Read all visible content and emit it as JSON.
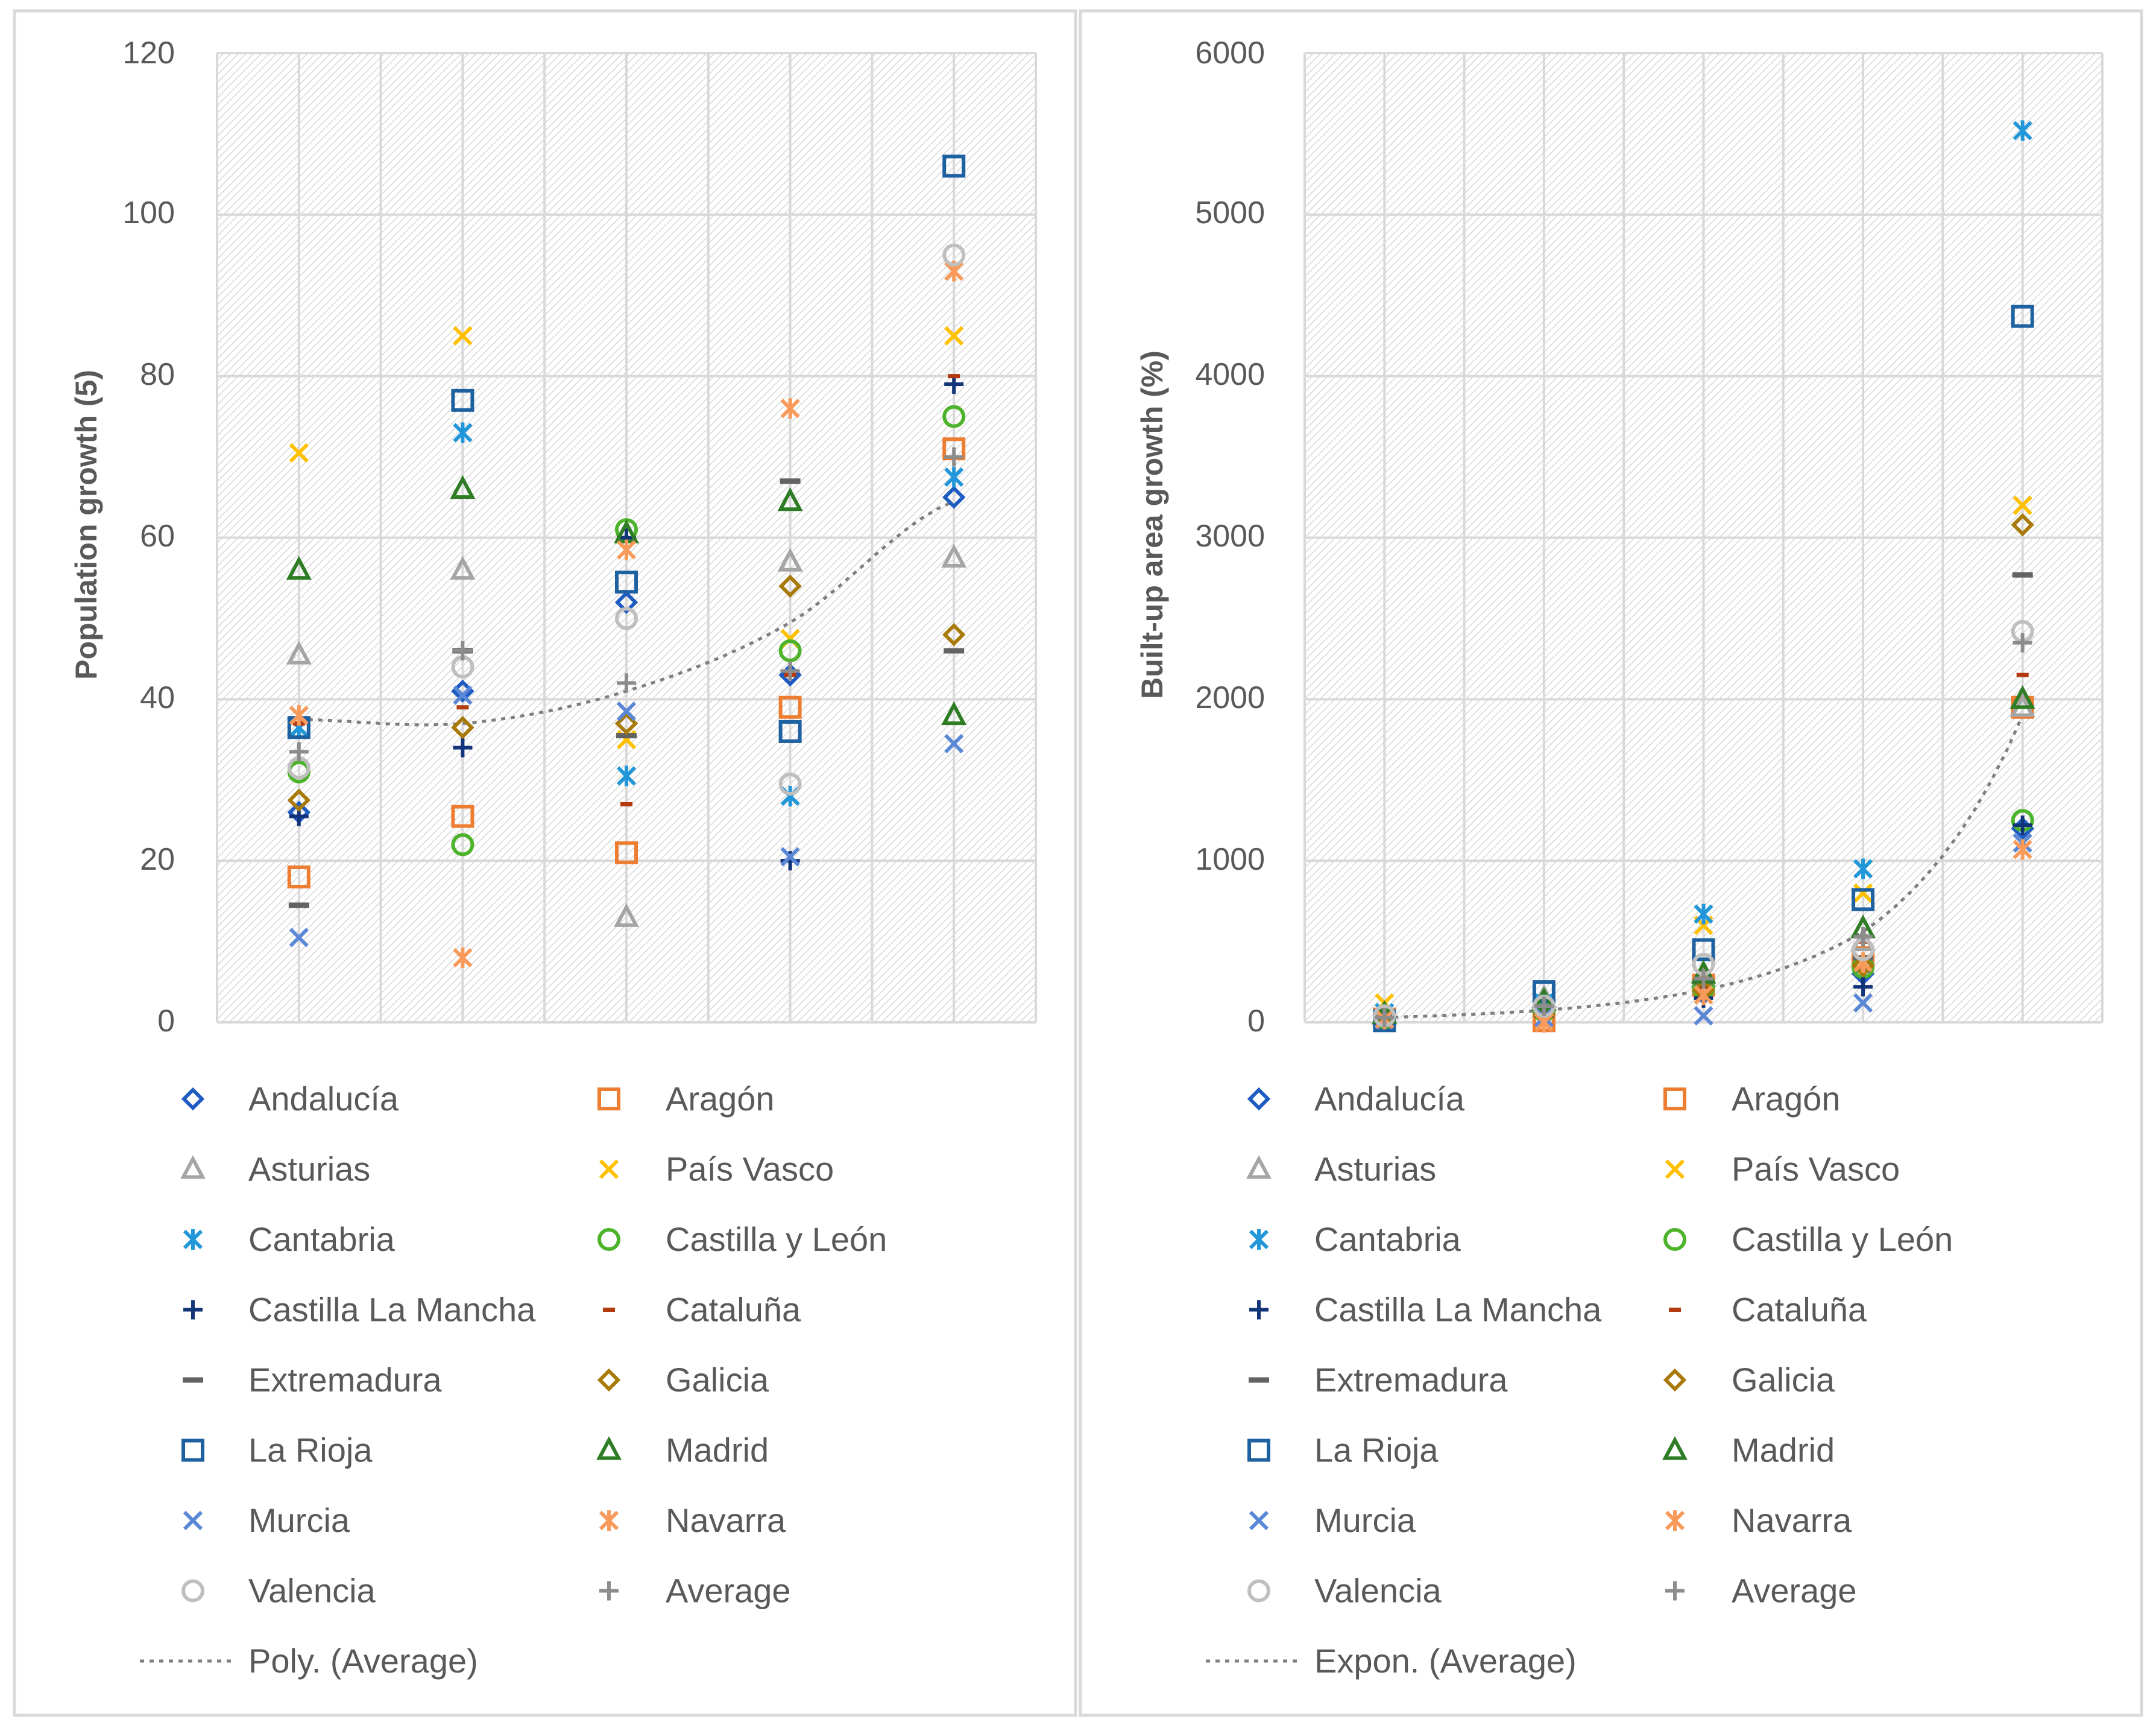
{
  "chart_data": [
    {
      "type": "scatter",
      "ylabel": "Population growth (5)",
      "xlabel": "",
      "ylim": [
        0,
        120
      ],
      "yticks": [
        "0",
        "20",
        "40",
        "60",
        "80",
        "100",
        "120"
      ],
      "x_categories": 5,
      "series": [
        {
          "name": "Andalucía",
          "values": [
            26,
            41,
            52,
            43,
            65
          ]
        },
        {
          "name": "Aragón",
          "values": [
            18,
            25.5,
            21,
            39,
            71
          ]
        },
        {
          "name": "Asturias",
          "values": [
            45.5,
            56,
            13,
            57,
            57.5
          ]
        },
        {
          "name": "País Vasco",
          "values": [
            70.5,
            85,
            35,
            47.5,
            85
          ]
        },
        {
          "name": "Cantabria",
          "values": [
            36.5,
            73,
            30.5,
            28,
            67.5
          ]
        },
        {
          "name": "Castilla y León",
          "values": [
            31,
            22,
            61,
            46,
            75
          ]
        },
        {
          "name": "Castilla La Mancha",
          "values": [
            25.5,
            34,
            60,
            20,
            79
          ]
        },
        {
          "name": "Cataluña",
          "values": [
            37,
            39,
            27,
            43,
            80
          ]
        },
        {
          "name": "Extremadura",
          "values": [
            14.5,
            46,
            35.5,
            67,
            46
          ]
        },
        {
          "name": "Galicia",
          "values": [
            27.5,
            36.5,
            37,
            54,
            48
          ]
        },
        {
          "name": "La Rioja",
          "values": [
            36.5,
            77,
            54.5,
            36,
            106
          ]
        },
        {
          "name": "Madrid",
          "values": [
            56,
            66,
            60.5,
            64.5,
            38
          ]
        },
        {
          "name": "Murcia",
          "values": [
            10.5,
            40.5,
            38.5,
            20.5,
            34.5
          ]
        },
        {
          "name": "Navarra",
          "values": [
            38,
            8,
            58.5,
            76,
            93
          ]
        },
        {
          "name": "Valencia",
          "values": [
            31.5,
            44,
            50,
            29.5,
            95
          ]
        },
        {
          "name": "Average",
          "values": [
            33.5,
            46,
            42,
            43.5,
            70
          ]
        }
      ],
      "trendline": {
        "name": "Poly. (Average)",
        "kind": "poly2",
        "values": [
          37.5,
          37.0,
          41.0,
          49.5,
          64.5
        ]
      }
    },
    {
      "type": "scatter",
      "ylabel": "Built-up area growth (%)",
      "xlabel": "",
      "ylim": [
        0,
        6000
      ],
      "yticks": [
        "0",
        "1000",
        "2000",
        "3000",
        "4000",
        "5000",
        "6000"
      ],
      "x_categories": 5,
      "series": [
        {
          "name": "Andalucía",
          "values": [
            30,
            90,
            180,
            300,
            1200
          ]
        },
        {
          "name": "Aragón",
          "values": [
            20,
            10,
            230,
            400,
            1950
          ]
        },
        {
          "name": "Asturias",
          "values": [
            40,
            150,
            280,
            500,
            1950
          ]
        },
        {
          "name": "País Vasco",
          "values": [
            120,
            80,
            600,
            800,
            3200
          ]
        },
        {
          "name": "Cantabria",
          "values": [
            60,
            120,
            670,
            950,
            5520
          ]
        },
        {
          "name": "Castilla y León",
          "values": [
            30,
            70,
            210,
            340,
            1250
          ]
        },
        {
          "name": "Castilla La Mancha",
          "values": [
            20,
            40,
            150,
            220,
            1220
          ]
        },
        {
          "name": "Cataluña",
          "values": [
            40,
            90,
            220,
            500,
            2150
          ]
        },
        {
          "name": "Extremadura",
          "values": [
            20,
            60,
            250,
            400,
            2770
          ]
        },
        {
          "name": "Galicia",
          "values": [
            30,
            50,
            200,
            350,
            3080
          ]
        },
        {
          "name": "La Rioja",
          "values": [
            10,
            190,
            450,
            760,
            4370
          ]
        },
        {
          "name": "Madrid",
          "values": [
            50,
            130,
            300,
            580,
            2000
          ]
        },
        {
          "name": "Murcia",
          "values": [
            15,
            30,
            40,
            120,
            1110
          ]
        },
        {
          "name": "Navarra",
          "values": [
            20,
            0,
            170,
            370,
            1070
          ]
        },
        {
          "name": "Valencia",
          "values": [
            40,
            100,
            360,
            450,
            2420
          ]
        },
        {
          "name": "Average",
          "values": [
            30,
            100,
            270,
            530,
            2350
          ]
        }
      ],
      "trendline": {
        "name": "Expon. (Average)",
        "kind": "exp",
        "values": [
          30,
          75,
          200,
          560,
          1900
        ]
      }
    }
  ],
  "series_styles": [
    {
      "marker": "diamond",
      "color": "#1F5CC2"
    },
    {
      "marker": "square",
      "color": "#ED7D31"
    },
    {
      "marker": "triangle",
      "color": "#A5A5A5"
    },
    {
      "marker": "x",
      "color": "#FFC000"
    },
    {
      "marker": "star",
      "color": "#2196D9"
    },
    {
      "marker": "circle",
      "color": "#4CB32A"
    },
    {
      "marker": "plus",
      "color": "#12357A"
    },
    {
      "marker": "dash-small",
      "color": "#B23A0E"
    },
    {
      "marker": "dash",
      "color": "#636363"
    },
    {
      "marker": "diamond",
      "color": "#A77A0A"
    },
    {
      "marker": "square",
      "color": "#1E61A0"
    },
    {
      "marker": "triangle",
      "color": "#2E7D24"
    },
    {
      "marker": "x",
      "color": "#5A87D6"
    },
    {
      "marker": "star",
      "color": "#F79A5A"
    },
    {
      "marker": "circle",
      "color": "#BFBFBF"
    },
    {
      "marker": "plus",
      "color": "#8C8C8C"
    }
  ],
  "colors": {
    "grid": "#d9d9d9",
    "text": "#595959",
    "trend": "#7f7f7f",
    "hatch": "#c8c8c8"
  }
}
